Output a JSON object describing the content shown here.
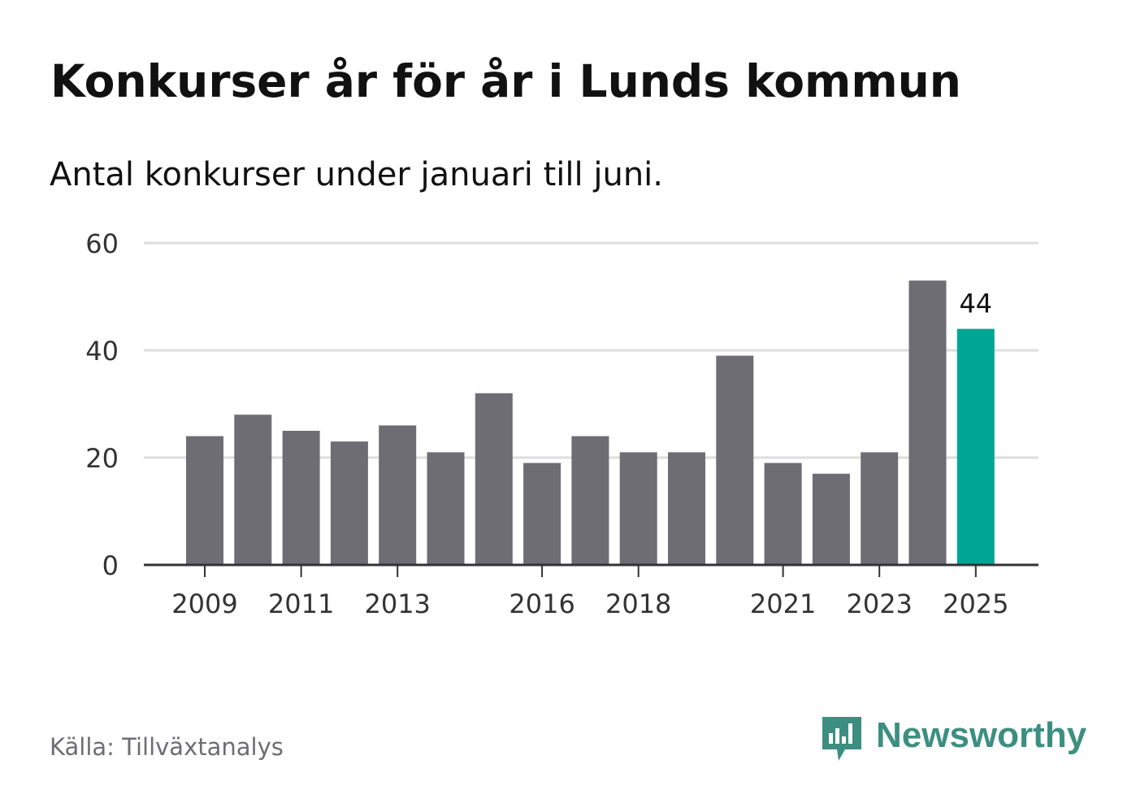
{
  "header": {
    "title": "Konkurser år för år i Lunds kommun",
    "subtitle": "Antal konkurser under januari till juni."
  },
  "footer": {
    "source": "Källa: Tillväxtanalys",
    "brand": "Newsworthy",
    "brand_icon": "bar-chart-speech-bubble-icon"
  },
  "colors": {
    "bar": "#6e6d74",
    "highlight": "#00a596",
    "grid": "#dedede",
    "axis": "#333333",
    "text": "#111111",
    "tick_text": "#333333",
    "brand": "#3c8f80"
  },
  "chart_data": {
    "type": "bar",
    "categories": [
      "2009",
      "2010",
      "2011",
      "2012",
      "2013",
      "2014",
      "2015",
      "2016",
      "2017",
      "2018",
      "2019",
      "2020",
      "2021",
      "2022",
      "2023",
      "2024",
      "2025"
    ],
    "values": [
      24,
      28,
      25,
      23,
      26,
      21,
      32,
      19,
      24,
      21,
      21,
      39,
      19,
      17,
      21,
      53,
      44
    ],
    "x_tick_labels": [
      "2009",
      "2011",
      "2013",
      "2016",
      "2018",
      "2021",
      "2023",
      "2025"
    ],
    "y_ticks": [
      0,
      20,
      40,
      60
    ],
    "ylim": [
      0,
      60
    ],
    "highlight_category": "2025",
    "data_labels": [
      {
        "category": "2025",
        "text": "44"
      }
    ],
    "grid": true,
    "legend": "none",
    "xlabel": "",
    "ylabel": ""
  }
}
